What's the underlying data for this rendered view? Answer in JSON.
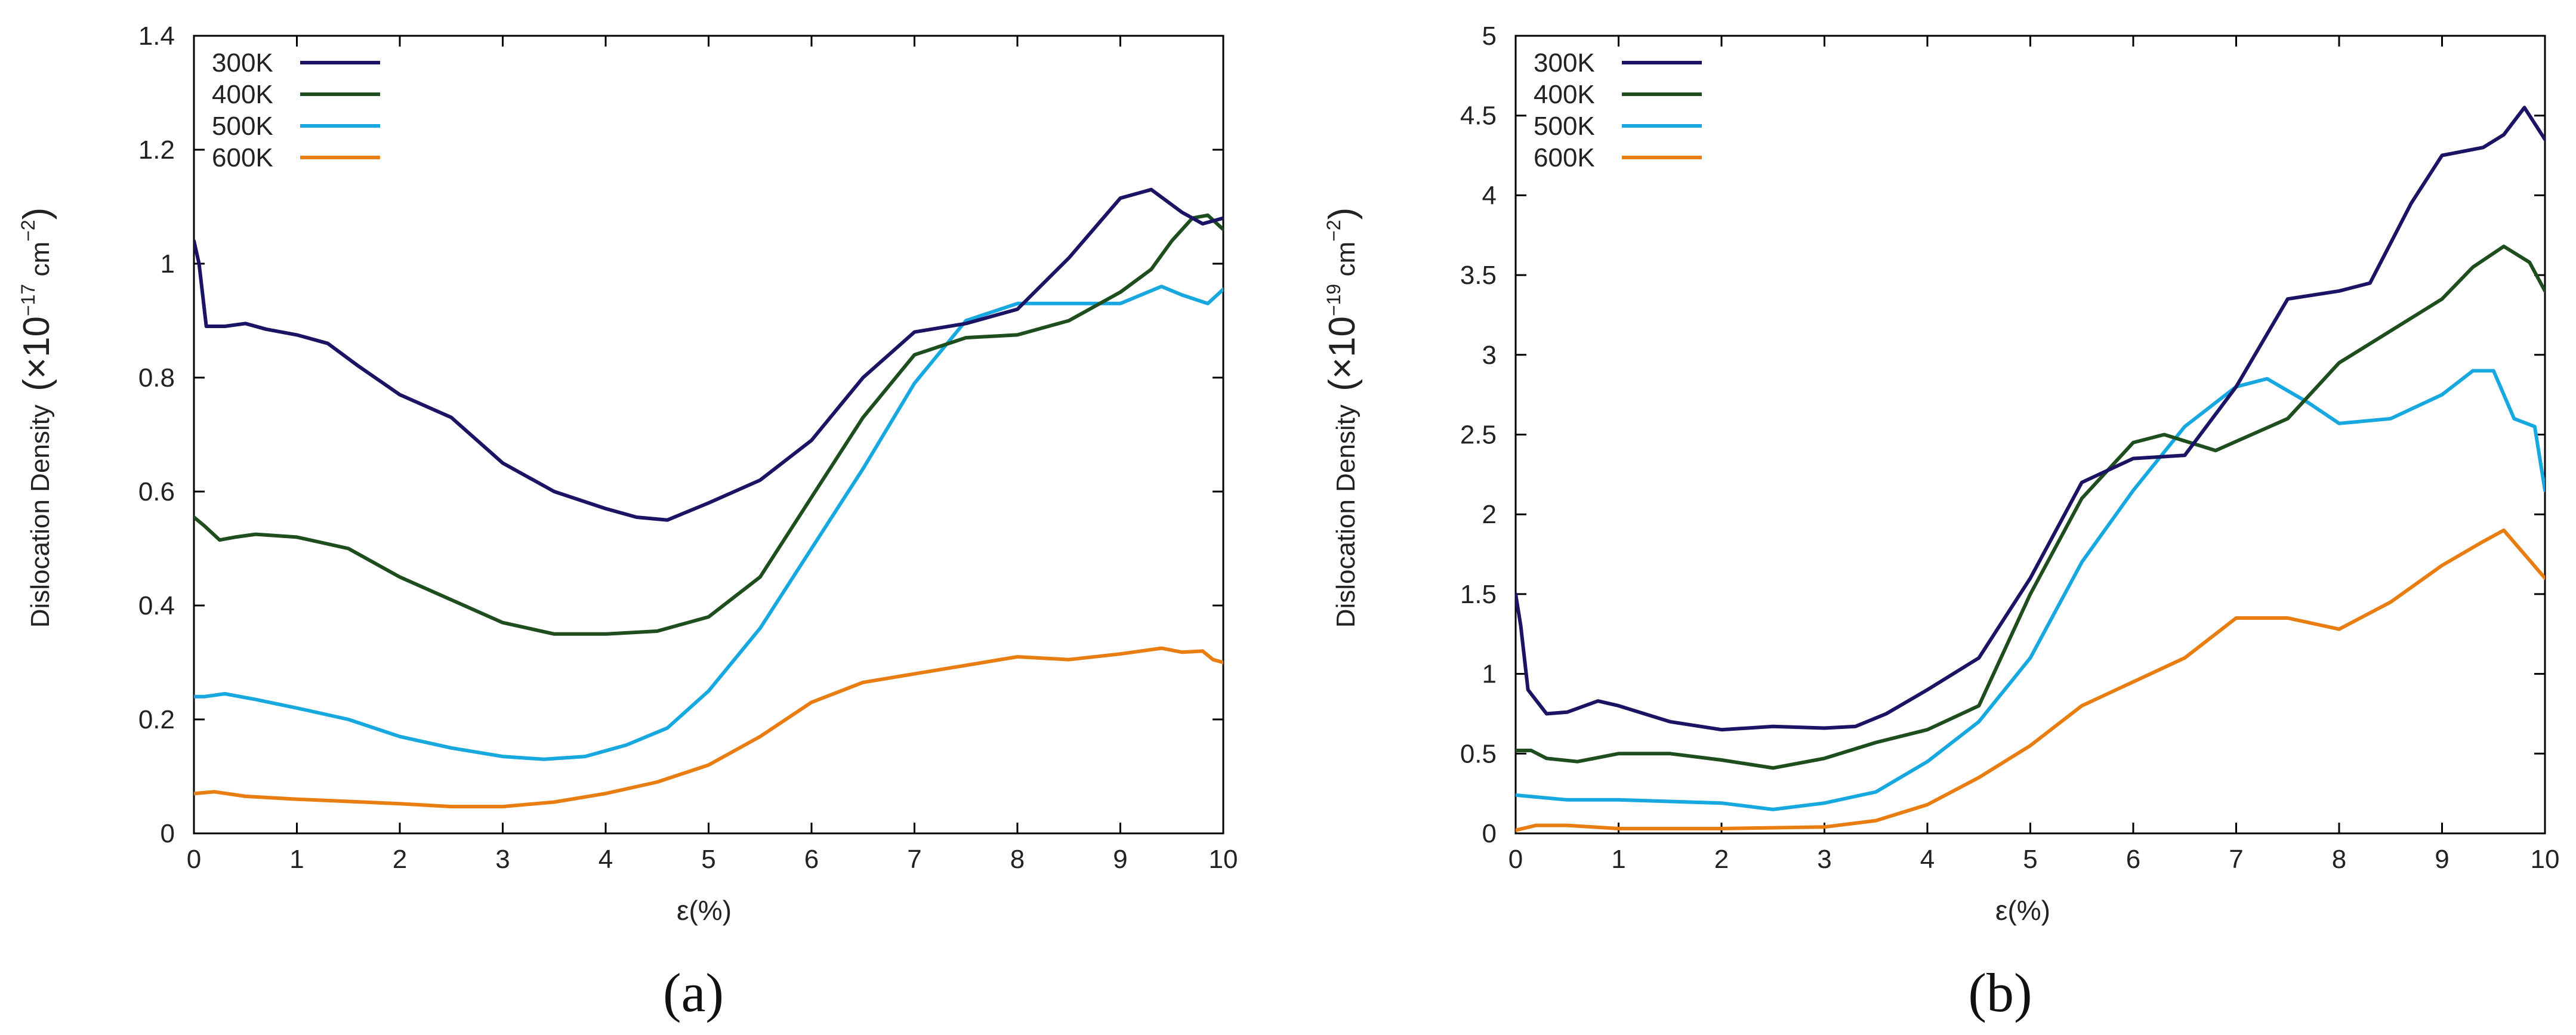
{
  "charts": [
    {
      "id": "a",
      "caption": "(a)",
      "chart_data": {
        "type": "line",
        "title": "",
        "xlabel": "ε(%)",
        "ylabel": "Dislocation Density",
        "ylabel_unit": "(×10",
        "ylabel_exp": "−17",
        "ylabel_cm": " cm",
        "ylabel_cm_exp": "−2",
        "ylabel_close": ")",
        "xlim": [
          0,
          10
        ],
        "ylim": [
          0,
          1.4
        ],
        "xticks": [
          "0",
          "1",
          "2",
          "3",
          "4",
          "5",
          "6",
          "7",
          "8",
          "9",
          "10"
        ],
        "yticks": [
          "0",
          "0.2",
          "0.4",
          "0.6",
          "0.8",
          "1",
          "1.2",
          "1.4"
        ],
        "legend_position": "top-left",
        "grid": false,
        "series": [
          {
            "name": "300K",
            "color": "#1b1464",
            "points": [
              [
                0,
                1.04
              ],
              [
                0.05,
                1.0
              ],
              [
                0.12,
                0.89
              ],
              [
                0.3,
                0.89
              ],
              [
                0.5,
                0.895
              ],
              [
                0.7,
                0.885
              ],
              [
                1.0,
                0.875
              ],
              [
                1.3,
                0.86
              ],
              [
                1.6,
                0.82
              ],
              [
                2.0,
                0.77
              ],
              [
                2.5,
                0.73
              ],
              [
                3.0,
                0.65
              ],
              [
                3.5,
                0.6
              ],
              [
                4.0,
                0.57
              ],
              [
                4.3,
                0.555
              ],
              [
                4.6,
                0.55
              ],
              [
                5.0,
                0.58
              ],
              [
                5.5,
                0.62
              ],
              [
                6.0,
                0.69
              ],
              [
                6.5,
                0.8
              ],
              [
                7.0,
                0.88
              ],
              [
                7.5,
                0.895
              ],
              [
                8.0,
                0.92
              ],
              [
                8.5,
                1.01
              ],
              [
                9.0,
                1.115
              ],
              [
                9.3,
                1.13
              ],
              [
                9.6,
                1.09
              ],
              [
                9.8,
                1.07
              ],
              [
                10.0,
                1.08
              ]
            ]
          },
          {
            "name": "400K",
            "color": "#1e4d1e",
            "points": [
              [
                0,
                0.555
              ],
              [
                0.1,
                0.54
              ],
              [
                0.25,
                0.515
              ],
              [
                0.4,
                0.52
              ],
              [
                0.6,
                0.525
              ],
              [
                1.0,
                0.52
              ],
              [
                1.5,
                0.5
              ],
              [
                2.0,
                0.45
              ],
              [
                2.5,
                0.41
              ],
              [
                3.0,
                0.37
              ],
              [
                3.5,
                0.35
              ],
              [
                4.0,
                0.35
              ],
              [
                4.5,
                0.355
              ],
              [
                5.0,
                0.38
              ],
              [
                5.5,
                0.45
              ],
              [
                6.0,
                0.59
              ],
              [
                6.5,
                0.73
              ],
              [
                7.0,
                0.84
              ],
              [
                7.5,
                0.87
              ],
              [
                8.0,
                0.875
              ],
              [
                8.5,
                0.9
              ],
              [
                9.0,
                0.95
              ],
              [
                9.3,
                0.99
              ],
              [
                9.5,
                1.04
              ],
              [
                9.7,
                1.08
              ],
              [
                9.85,
                1.085
              ],
              [
                10.0,
                1.06
              ]
            ]
          },
          {
            "name": "500K",
            "color": "#18a8e0",
            "points": [
              [
                0,
                0.24
              ],
              [
                0.1,
                0.24
              ],
              [
                0.3,
                0.245
              ],
              [
                0.6,
                0.235
              ],
              [
                1.0,
                0.22
              ],
              [
                1.5,
                0.2
              ],
              [
                2.0,
                0.17
              ],
              [
                2.5,
                0.15
              ],
              [
                3.0,
                0.135
              ],
              [
                3.4,
                0.13
              ],
              [
                3.8,
                0.135
              ],
              [
                4.2,
                0.155
              ],
              [
                4.6,
                0.185
              ],
              [
                5.0,
                0.25
              ],
              [
                5.5,
                0.36
              ],
              [
                6.0,
                0.5
              ],
              [
                6.5,
                0.64
              ],
              [
                7.0,
                0.79
              ],
              [
                7.5,
                0.9
              ],
              [
                8.0,
                0.93
              ],
              [
                8.5,
                0.93
              ],
              [
                9.0,
                0.93
              ],
              [
                9.4,
                0.96
              ],
              [
                9.6,
                0.945
              ],
              [
                9.85,
                0.93
              ],
              [
                10.0,
                0.955
              ]
            ]
          },
          {
            "name": "600K",
            "color": "#e87d12",
            "points": [
              [
                0,
                0.07
              ],
              [
                0.2,
                0.073
              ],
              [
                0.5,
                0.065
              ],
              [
                1.0,
                0.06
              ],
              [
                2.0,
                0.052
              ],
              [
                2.5,
                0.047
              ],
              [
                3.0,
                0.047
              ],
              [
                3.5,
                0.055
              ],
              [
                4.0,
                0.07
              ],
              [
                4.5,
                0.09
              ],
              [
                5.0,
                0.12
              ],
              [
                5.5,
                0.17
              ],
              [
                6.0,
                0.23
              ],
              [
                6.5,
                0.265
              ],
              [
                7.0,
                0.28
              ],
              [
                7.5,
                0.295
              ],
              [
                8.0,
                0.31
              ],
              [
                8.5,
                0.305
              ],
              [
                9.0,
                0.315
              ],
              [
                9.4,
                0.325
              ],
              [
                9.6,
                0.318
              ],
              [
                9.8,
                0.32
              ],
              [
                9.9,
                0.305
              ],
              [
                10.0,
                0.3
              ]
            ]
          }
        ]
      }
    },
    {
      "id": "b",
      "caption": "(b)",
      "chart_data": {
        "type": "line",
        "title": "",
        "xlabel": "ε(%)",
        "ylabel": "Dislocation Density",
        "ylabel_unit": "(×10",
        "ylabel_exp": "−19",
        "ylabel_cm": " cm",
        "ylabel_cm_exp": "−2",
        "ylabel_close": ")",
        "xlim": [
          0,
          10
        ],
        "ylim": [
          0,
          5
        ],
        "xticks": [
          "0",
          "1",
          "2",
          "3",
          "4",
          "5",
          "6",
          "7",
          "8",
          "9",
          "10"
        ],
        "yticks": [
          "0",
          "0.5",
          "1",
          "1.5",
          "2",
          "2.5",
          "3",
          "3.5",
          "4",
          "4.5",
          "5"
        ],
        "legend_position": "top-left",
        "grid": false,
        "series": [
          {
            "name": "300K",
            "color": "#1b1464",
            "points": [
              [
                0,
                1.5
              ],
              [
                0.05,
                1.3
              ],
              [
                0.12,
                0.9
              ],
              [
                0.3,
                0.75
              ],
              [
                0.5,
                0.76
              ],
              [
                0.8,
                0.83
              ],
              [
                1.0,
                0.8
              ],
              [
                1.5,
                0.7
              ],
              [
                2.0,
                0.65
              ],
              [
                2.5,
                0.67
              ],
              [
                3.0,
                0.66
              ],
              [
                3.3,
                0.67
              ],
              [
                3.6,
                0.75
              ],
              [
                4.0,
                0.9
              ],
              [
                4.5,
                1.1
              ],
              [
                5.0,
                1.6
              ],
              [
                5.5,
                2.2
              ],
              [
                6.0,
                2.35
              ],
              [
                6.5,
                2.37
              ],
              [
                7.0,
                2.8
              ],
              [
                7.5,
                3.35
              ],
              [
                8.0,
                3.4
              ],
              [
                8.3,
                3.45
              ],
              [
                8.7,
                3.95
              ],
              [
                9.0,
                4.25
              ],
              [
                9.4,
                4.3
              ],
              [
                9.6,
                4.38
              ],
              [
                9.8,
                4.55
              ],
              [
                10.0,
                4.35
              ]
            ]
          },
          {
            "name": "400K",
            "color": "#1e4d1e",
            "points": [
              [
                0,
                0.52
              ],
              [
                0.15,
                0.52
              ],
              [
                0.3,
                0.47
              ],
              [
                0.6,
                0.45
              ],
              [
                1.0,
                0.5
              ],
              [
                1.5,
                0.5
              ],
              [
                2.0,
                0.46
              ],
              [
                2.5,
                0.41
              ],
              [
                3.0,
                0.47
              ],
              [
                3.5,
                0.57
              ],
              [
                4.0,
                0.65
              ],
              [
                4.5,
                0.8
              ],
              [
                5.0,
                1.5
              ],
              [
                5.5,
                2.1
              ],
              [
                6.0,
                2.45
              ],
              [
                6.3,
                2.5
              ],
              [
                6.8,
                2.4
              ],
              [
                7.5,
                2.6
              ],
              [
                8.0,
                2.95
              ],
              [
                8.5,
                3.15
              ],
              [
                9.0,
                3.35
              ],
              [
                9.3,
                3.55
              ],
              [
                9.6,
                3.68
              ],
              [
                9.85,
                3.58
              ],
              [
                10.0,
                3.4
              ]
            ]
          },
          {
            "name": "500K",
            "color": "#18a8e0",
            "points": [
              [
                0,
                0.24
              ],
              [
                0.5,
                0.21
              ],
              [
                1.0,
                0.21
              ],
              [
                1.5,
                0.2
              ],
              [
                2.0,
                0.19
              ],
              [
                2.5,
                0.15
              ],
              [
                3.0,
                0.19
              ],
              [
                3.5,
                0.26
              ],
              [
                4.0,
                0.45
              ],
              [
                4.5,
                0.7
              ],
              [
                5.0,
                1.1
              ],
              [
                5.5,
                1.7
              ],
              [
                6.0,
                2.15
              ],
              [
                6.5,
                2.55
              ],
              [
                7.0,
                2.8
              ],
              [
                7.3,
                2.85
              ],
              [
                7.7,
                2.7
              ],
              [
                8.0,
                2.57
              ],
              [
                8.5,
                2.6
              ],
              [
                9.0,
                2.75
              ],
              [
                9.3,
                2.9
              ],
              [
                9.5,
                2.9
              ],
              [
                9.7,
                2.6
              ],
              [
                9.9,
                2.55
              ],
              [
                10.0,
                2.15
              ]
            ]
          },
          {
            "name": "600K",
            "color": "#e87d12",
            "points": [
              [
                0,
                0.02
              ],
              [
                0.2,
                0.05
              ],
              [
                0.5,
                0.05
              ],
              [
                1.0,
                0.03
              ],
              [
                2.0,
                0.03
              ],
              [
                3.0,
                0.04
              ],
              [
                3.5,
                0.08
              ],
              [
                4.0,
                0.18
              ],
              [
                4.5,
                0.35
              ],
              [
                5.0,
                0.55
              ],
              [
                5.5,
                0.8
              ],
              [
                6.0,
                0.95
              ],
              [
                6.5,
                1.1
              ],
              [
                7.0,
                1.35
              ],
              [
                7.5,
                1.35
              ],
              [
                8.0,
                1.28
              ],
              [
                8.5,
                1.45
              ],
              [
                9.0,
                1.68
              ],
              [
                9.4,
                1.83
              ],
              [
                9.6,
                1.9
              ],
              [
                9.8,
                1.75
              ],
              [
                10.0,
                1.6
              ]
            ]
          }
        ]
      }
    }
  ]
}
